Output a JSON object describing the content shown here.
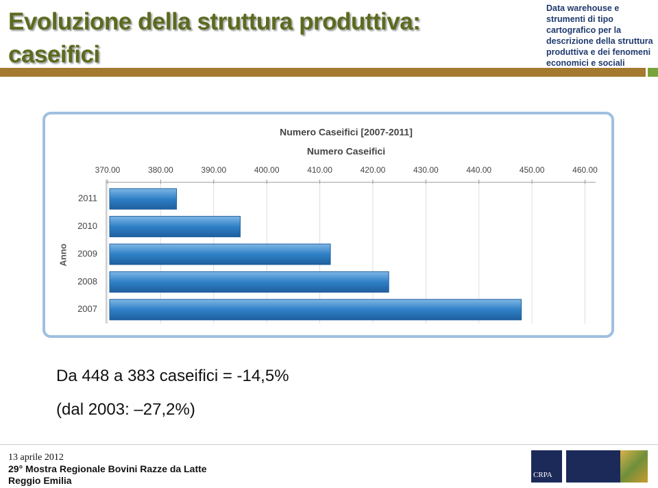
{
  "header": {
    "title_lines": [
      "Evoluzione della struttura produttiva:",
      "caseifici"
    ],
    "note_lines": [
      "Data warehouse e",
      "strumenti di tipo",
      "cartografico per la",
      "descrizione della struttura",
      "produttiva e dei fenomeni",
      "economici e sociali"
    ]
  },
  "chart_data": {
    "type": "hbar",
    "title": "Numero Caseifici [2007-2011]",
    "subtitle": "Numero Caseifici",
    "y_label": "Anno",
    "categories": [
      "2011",
      "2010",
      "2009",
      "2008",
      "2007"
    ],
    "values": [
      383,
      395,
      412,
      423,
      448
    ],
    "color": "#2f80c6",
    "xlim": [
      370,
      462
    ],
    "xticks": [
      {
        "value": 370,
        "label": "370.00"
      },
      {
        "value": 380,
        "label": "380.00"
      },
      {
        "value": 390,
        "label": "390.00"
      },
      {
        "value": 400,
        "label": "400.00"
      },
      {
        "value": 410,
        "label": "410.00"
      },
      {
        "value": 420,
        "label": "420.00"
      },
      {
        "value": 430,
        "label": "430.00"
      },
      {
        "value": 440,
        "label": "440.00"
      },
      {
        "value": 450,
        "label": "450.00"
      },
      {
        "value": 460,
        "label": "460.00"
      }
    ],
    "grid": true
  },
  "body": [
    "Da 448 a 383 caseifici = -14,5%",
    "(dal 2003: –27,2%)"
  ],
  "footer": {
    "date": "13 aprile 2012",
    "event": "29° Mostra Regionale Bovini Razze da Latte",
    "place": "Reggio Emilia",
    "logo": "CRPA"
  }
}
